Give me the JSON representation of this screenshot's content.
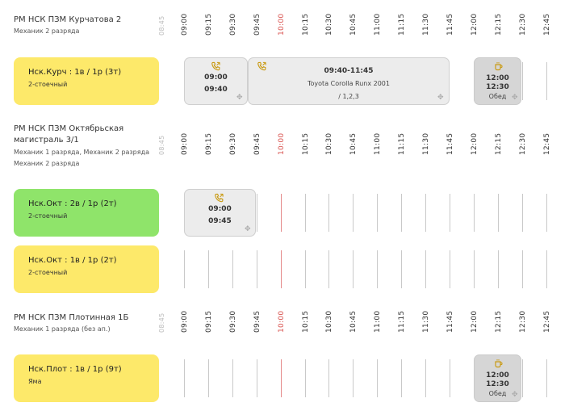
{
  "ticks": [
    "09:00",
    "09:15",
    "09:30",
    "09:45",
    "10:00",
    "10:15",
    "10:30",
    "10:45",
    "11:00",
    "11:15",
    "11:30",
    "11:45",
    "12:00",
    "12:15",
    "12:30",
    "12:45"
  ],
  "tick_prefix": "08:45",
  "colors": {
    "yellow": "#fde96a",
    "green": "#8fe46a",
    "red_tick": "#d9534f"
  },
  "sections": [
    {
      "title": "РМ НСК ПЗМ Курчатова 2",
      "subtitle": "Механик 2 разряда"
    },
    {
      "title": "РМ НСК ПЗМ Октябрьская магистраль 3/1",
      "subtitle_1": "Механик 1 разряда, Механик 2 разряда",
      "subtitle_2": "Механик 2 разряда"
    },
    {
      "title": "РМ НСК ПЗМ Плотинная 1Б",
      "subtitle": "Механик 1 разряда (без ап.)"
    }
  ],
  "bays": [
    {
      "name": "Нск.Курч : 1в / 1р (3т)",
      "type": "2-стоечный",
      "color": "#fde96a"
    },
    {
      "name": "Нск.Окт : 2в / 1р (2т)",
      "type": "2-стоечный",
      "color": "#8fe46a"
    },
    {
      "name": "Нск.Окт : 1в / 1р (2т)",
      "type": "2-стоечный",
      "color": "#fde96a"
    },
    {
      "name": "Нск.Плот : 1в / 1р (9т)",
      "type": "Яма",
      "color": "#fde96a"
    }
  ],
  "events": {
    "e1": {
      "start": "09:00",
      "end": "09:40",
      "icon": "phone-icon"
    },
    "e2": {
      "time": "09:40-11:45",
      "car": "Toyota Corolla Runx 2001",
      "info": "/ 1,2,3",
      "icon": "phone-icon"
    },
    "e3": {
      "start": "12:00",
      "end": "12:30",
      "label": "Обед",
      "icon": "cup-icon"
    },
    "e4": {
      "start": "09:00",
      "end": "09:45",
      "icon": "phone-icon"
    },
    "e5": {
      "start": "12:00",
      "end": "12:30",
      "label": "Обед",
      "icon": "cup-icon"
    }
  }
}
